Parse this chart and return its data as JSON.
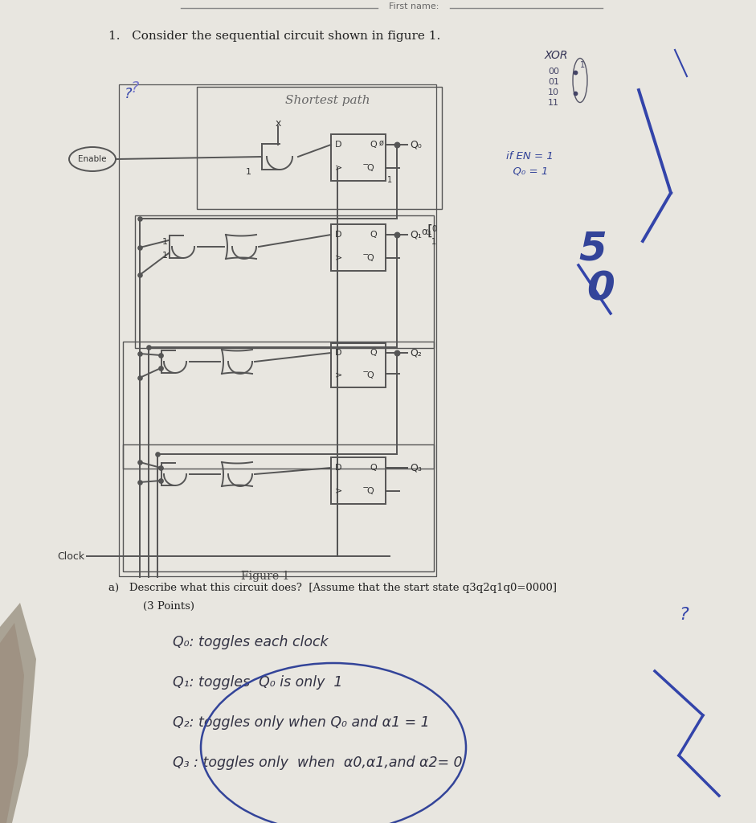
{
  "bg_color": "#c8c4bc",
  "paper_color": "#e8e6e0",
  "paper_color2": "#dedad4",
  "wire_color": "#555555",
  "text_color": "#333333",
  "blue_color": "#3344aa",
  "blue_dark": "#223388",
  "title_text": "1.   Consider the sequential circuit shown in figure 1.",
  "figure_caption": "Figure 1",
  "question_a": "a)   Describe what this circuit does?  [Assume that the start state q3q2q1q0=0000]",
  "question_a2": "        (3 Points)",
  "hw_line1": "Q₀: toggles each clock",
  "hw_line2": "Q₁: toggles  Q₀ is only  1",
  "hw_line3": "Q₂: toggles only when Q₀ and α1 = 1",
  "hw_line4": "Q₃ : toggles only  when  α0,α1,and α2= 0",
  "xor_label": "XOR",
  "xor_rows": [
    "00",
    "01",
    "10",
    "11"
  ],
  "if_en_line1": "if EN = 1",
  "if_en_line2": "  Q₀ = 1",
  "shortest_path": "Shortest path",
  "enable_label": "Enable",
  "clock_label": "Clock"
}
